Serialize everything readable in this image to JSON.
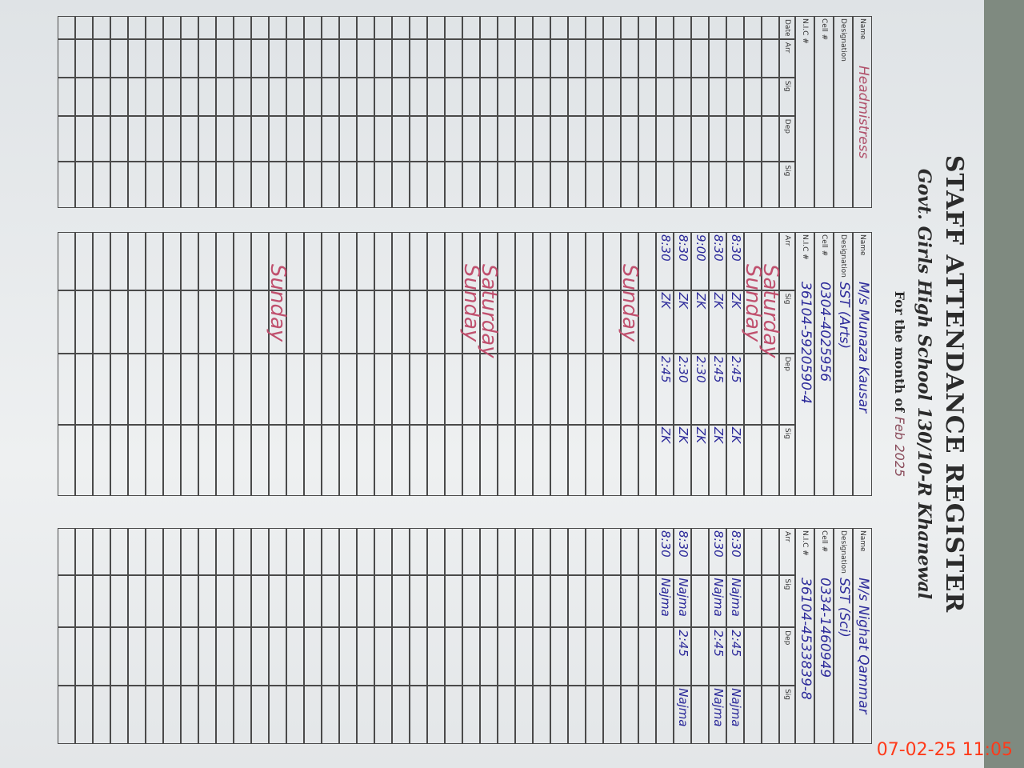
{
  "header": {
    "title": "STAFF ATTENDANCE REGISTER",
    "school": "Govt. Girls High School 130/10-R Khanewal",
    "month_label": "For the month of",
    "month": "Feb",
    "year": "2025"
  },
  "field_labels": [
    "Name",
    "Designation",
    "Cell #",
    "N.I.C #"
  ],
  "column_headers": [
    "Date",
    "Arr",
    "Sig",
    "Dep",
    "Sig"
  ],
  "staff": [
    {
      "name": "Headmistress"
    },
    {
      "name": "M/s Munaza Kausar",
      "designation": "SST (Arts)",
      "cell": "0304-4025956",
      "nic": "36104-5920590-4",
      "rows": [
        {
          "note": "Saturday"
        },
        {
          "note": "Sunday"
        },
        {
          "arr": "8:30",
          "sig": "ZK",
          "dep": "2:45",
          "sig2": "ZK"
        },
        {
          "arr": "8:30",
          "sig": "ZK",
          "dep": "2:45",
          "sig2": "ZK"
        },
        {
          "arr": "9:00",
          "sig": "ZK",
          "dep": "2:30",
          "sig2": "ZK"
        },
        {
          "arr": "8:30",
          "sig": "ZK",
          "dep": "2:30",
          "sig2": "ZK"
        },
        {
          "arr": "8:30",
          "sig": "ZK",
          "dep": "2:45",
          "sig2": "ZK"
        },
        null,
        {
          "note": "Sunday"
        },
        null,
        null,
        null,
        null,
        null,
        null,
        null,
        {
          "note": "Saturday"
        },
        {
          "note": "Sunday"
        },
        null,
        null,
        null,
        null,
        null,
        null,
        null,
        null,
        null,
        null,
        {
          "note": "Sunday"
        }
      ]
    },
    {
      "name": "M/s Nighat Qammar",
      "designation": "SST (Sci)",
      "cell": "0334-1460949",
      "nic": "36104-4533839-8",
      "rows": [
        null,
        null,
        {
          "arr": "8:30",
          "sig": "Najma",
          "dep": "2:45",
          "sig2": "Najma"
        },
        {
          "arr": "8:30",
          "sig": "Najma",
          "dep": "2:45",
          "sig2": "Najma"
        },
        null,
        {
          "arr": "8:30",
          "sig": "Najma",
          "dep": "2:45",
          "sig2": "Najma"
        },
        {
          "arr": "8:30",
          "sig": "Najma"
        }
      ]
    }
  ],
  "timestamp": "07-02-25 11:05"
}
